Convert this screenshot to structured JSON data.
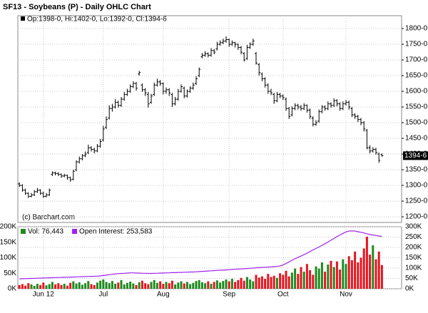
{
  "chart_data": {
    "type": "ohlc",
    "title": "SF13 - Soybeans (P) - Daily OHLC Chart",
    "legend": "Op:1398-0, Hi:1402-0, Lo:1392-0, Cl:1394-6",
    "last_label": "1394-6",
    "annotation": "(c) Barchart.com",
    "color": "#000000",
    "grid": true,
    "ylim": [
      1182,
      1841
    ],
    "yticks": [
      {
        "value": 1200,
        "label": "1200-0"
      },
      {
        "value": 1250,
        "label": "1250-0"
      },
      {
        "value": 1300,
        "label": "1300-0"
      },
      {
        "value": 1350,
        "label": "1350-0"
      },
      {
        "value": 1400,
        "label": "1400-0"
      },
      {
        "value": 1450,
        "label": "1450-0"
      },
      {
        "value": 1500,
        "label": "1500-0"
      },
      {
        "value": 1550,
        "label": "1550-0"
      },
      {
        "value": 1600,
        "label": "1600-0"
      },
      {
        "value": 1650,
        "label": "1650-0"
      },
      {
        "value": 1700,
        "label": "1700-0"
      },
      {
        "value": 1750,
        "label": "1750-0"
      },
      {
        "value": 1800,
        "label": "1800-0"
      }
    ],
    "categories": [
      null,
      null,
      null,
      null,
      null,
      null,
      null,
      null,
      "Jun 12",
      null,
      null,
      null,
      null,
      null,
      null,
      null,
      null,
      null,
      null,
      null,
      null,
      null,
      null,
      null,
      null,
      null,
      null,
      null,
      "Jul",
      null,
      null,
      null,
      null,
      null,
      null,
      null,
      null,
      null,
      null,
      null,
      null,
      null,
      null,
      null,
      null,
      null,
      null,
      null,
      "Aug",
      null,
      null,
      null,
      null,
      null,
      null,
      null,
      null,
      null,
      null,
      null,
      null,
      null,
      null,
      null,
      null,
      null,
      null,
      null,
      null,
      null,
      "Sep",
      null,
      null,
      null,
      null,
      null,
      null,
      null,
      null,
      null,
      null,
      null,
      null,
      null,
      null,
      null,
      null,
      null,
      "Oct",
      null,
      null,
      null,
      null,
      null,
      null,
      null,
      null,
      null,
      null,
      null,
      null,
      null,
      null,
      null,
      null,
      null,
      null,
      null,
      null,
      "Nov",
      null,
      null,
      null,
      null,
      null,
      null,
      null,
      null,
      null,
      null,
      null,
      null
    ],
    "bars": [
      [
        1305,
        1310,
        1295,
        1300
      ],
      [
        1300,
        1304,
        1280,
        1285
      ],
      [
        1285,
        1290,
        1270,
        1275
      ],
      [
        1275,
        1278,
        1260,
        1265
      ],
      [
        1265,
        1276,
        1262,
        1270
      ],
      [
        1270,
        1285,
        1266,
        1280
      ],
      [
        1280,
        1292,
        1276,
        1285
      ],
      [
        1285,
        1288,
        1270,
        1275
      ],
      [
        1275,
        1280,
        1260,
        1265
      ],
      [
        1265,
        1276,
        1262,
        1270
      ],
      [
        1270,
        1290,
        1266,
        1285
      ],
      [
        1335,
        1345,
        1330,
        1340
      ],
      [
        1340,
        1344,
        1332,
        1338
      ],
      [
        1338,
        1342,
        1330,
        1335
      ],
      [
        1335,
        1338,
        1324,
        1330
      ],
      [
        1330,
        1337,
        1326,
        1332
      ],
      [
        1332,
        1335,
        1318,
        1325
      ],
      [
        1325,
        1328,
        1312,
        1318
      ],
      [
        1320,
        1350,
        1316,
        1345
      ],
      [
        1350,
        1380,
        1345,
        1375
      ],
      [
        1375,
        1392,
        1370,
        1385
      ],
      [
        1385,
        1400,
        1380,
        1395
      ],
      [
        1395,
        1408,
        1390,
        1400
      ],
      [
        1405,
        1430,
        1400,
        1420
      ],
      [
        1420,
        1425,
        1408,
        1415
      ],
      [
        1415,
        1420,
        1402,
        1410
      ],
      [
        1410,
        1432,
        1406,
        1425
      ],
      [
        1425,
        1448,
        1420,
        1440
      ],
      [
        1445,
        1490,
        1440,
        1480
      ],
      [
        1485,
        1520,
        1480,
        1510
      ],
      [
        1515,
        1555,
        1510,
        1545
      ],
      [
        1545,
        1560,
        1535,
        1550
      ],
      [
        1550,
        1575,
        1545,
        1565
      ],
      [
        1565,
        1570,
        1548,
        1555
      ],
      [
        1555,
        1582,
        1550,
        1575
      ],
      [
        1575,
        1598,
        1570,
        1590
      ],
      [
        1590,
        1608,
        1585,
        1600
      ],
      [
        1600,
        1622,
        1595,
        1615
      ],
      [
        1615,
        1632,
        1610,
        1625
      ],
      [
        1625,
        1630,
        1602,
        1610
      ],
      [
        1655,
        1665,
        1650,
        1660
      ],
      [
        1620,
        1625,
        1598,
        1605
      ],
      [
        1605,
        1610,
        1585,
        1595
      ],
      [
        1590,
        1598,
        1548,
        1560
      ],
      [
        1565,
        1592,
        1560,
        1585
      ],
      [
        1590,
        1628,
        1585,
        1620
      ],
      [
        1620,
        1640,
        1615,
        1630
      ],
      [
        1630,
        1636,
        1618,
        1625
      ],
      [
        1625,
        1628,
        1590,
        1600
      ],
      [
        1600,
        1612,
        1592,
        1605
      ],
      [
        1605,
        1610,
        1585,
        1595
      ],
      [
        1590,
        1595,
        1550,
        1560
      ],
      [
        1560,
        1582,
        1555,
        1575
      ],
      [
        1575,
        1608,
        1570,
        1600
      ],
      [
        1600,
        1622,
        1596,
        1615
      ],
      [
        1610,
        1615,
        1578,
        1585
      ],
      [
        1585,
        1606,
        1580,
        1600
      ],
      [
        1600,
        1616,
        1595,
        1610
      ],
      [
        1610,
        1628,
        1605,
        1620
      ],
      [
        1625,
        1648,
        1620,
        1640
      ],
      [
        1650,
        1676,
        1645,
        1670
      ],
      [
        1710,
        1722,
        1705,
        1715
      ],
      [
        1715,
        1728,
        1710,
        1720
      ],
      [
        1720,
        1724,
        1708,
        1715
      ],
      [
        1715,
        1738,
        1710,
        1730
      ],
      [
        1730,
        1735,
        1718,
        1725
      ],
      [
        1735,
        1758,
        1730,
        1750
      ],
      [
        1750,
        1762,
        1745,
        1755
      ],
      [
        1755,
        1768,
        1750,
        1760
      ],
      [
        1760,
        1775,
        1755,
        1765
      ],
      [
        1765,
        1768,
        1742,
        1750
      ],
      [
        1750,
        1762,
        1745,
        1755
      ],
      [
        1755,
        1758,
        1740,
        1750
      ],
      [
        1750,
        1752,
        1732,
        1740
      ],
      [
        1740,
        1744,
        1718,
        1725
      ],
      [
        1720,
        1725,
        1695,
        1700
      ],
      [
        1705,
        1748,
        1700,
        1740
      ],
      [
        1740,
        1756,
        1735,
        1750
      ],
      [
        1750,
        1768,
        1745,
        1760
      ],
      [
        1720,
        1725,
        1685,
        1690
      ],
      [
        1685,
        1690,
        1650,
        1660
      ],
      [
        1655,
        1660,
        1632,
        1640
      ],
      [
        1640,
        1645,
        1612,
        1620
      ],
      [
        1620,
        1625,
        1592,
        1600
      ],
      [
        1600,
        1608,
        1588,
        1595
      ],
      [
        1590,
        1595,
        1560,
        1570
      ],
      [
        1570,
        1598,
        1565,
        1590
      ],
      [
        1590,
        1595,
        1578,
        1585
      ],
      [
        1585,
        1590,
        1572,
        1580
      ],
      [
        1575,
        1580,
        1538,
        1545
      ],
      [
        1545,
        1550,
        1512,
        1520
      ],
      [
        1525,
        1552,
        1520,
        1545
      ],
      [
        1545,
        1562,
        1540,
        1555
      ],
      [
        1555,
        1560,
        1542,
        1550
      ],
      [
        1550,
        1556,
        1538,
        1545
      ],
      [
        1545,
        1562,
        1540,
        1555
      ],
      [
        1555,
        1558,
        1532,
        1540
      ],
      [
        1540,
        1545,
        1512,
        1520
      ],
      [
        1515,
        1520,
        1488,
        1495
      ],
      [
        1495,
        1508,
        1490,
        1500
      ],
      [
        1505,
        1542,
        1500,
        1535
      ],
      [
        1535,
        1556,
        1530,
        1550
      ],
      [
        1550,
        1555,
        1538,
        1545
      ],
      [
        1545,
        1568,
        1540,
        1560
      ],
      [
        1560,
        1565,
        1548,
        1555
      ],
      [
        1555,
        1578,
        1550,
        1570
      ],
      [
        1570,
        1575,
        1552,
        1560
      ],
      [
        1560,
        1565,
        1538,
        1545
      ],
      [
        1545,
        1568,
        1540,
        1560
      ],
      [
        1560,
        1572,
        1555,
        1565
      ],
      [
        1565,
        1570,
        1542,
        1550
      ],
      [
        1545,
        1550,
        1518,
        1525
      ],
      [
        1525,
        1530,
        1512,
        1520
      ],
      [
        1520,
        1525,
        1502,
        1510
      ],
      [
        1510,
        1515,
        1492,
        1500
      ],
      [
        1500,
        1505,
        1472,
        1480
      ],
      [
        1475,
        1480,
        1415,
        1420
      ],
      [
        1420,
        1428,
        1402,
        1410
      ],
      [
        1410,
        1422,
        1405,
        1415
      ],
      [
        1415,
        1420,
        1398,
        1405
      ],
      [
        1400,
        1405,
        1372,
        1380
      ],
      [
        1398,
        1402,
        1392,
        1394.75
      ]
    ],
    "up_color": "#1f8a1f",
    "down_color": "#e8141e",
    "vol_ylim": [
      0,
      200000
    ],
    "vol_yticks": [
      {
        "value": 0,
        "label": "0K"
      },
      {
        "value": 50000,
        "label": "50K"
      },
      {
        "value": 100000,
        "label": "100K"
      },
      {
        "value": 150000,
        "label": "150K"
      },
      {
        "value": 200000,
        "label": "200K"
      }
    ],
    "y2lim": [
      0,
      300000
    ],
    "y2ticks": [
      {
        "value": 0,
        "label": "0K"
      },
      {
        "value": 50000,
        "label": "50K"
      },
      {
        "value": 100000,
        "label": "100K"
      },
      {
        "value": 150000,
        "label": "150K"
      },
      {
        "value": 200000,
        "label": "200K"
      },
      {
        "value": 250000,
        "label": "250K"
      },
      {
        "value": 300000,
        "label": "300K"
      }
    ],
    "series": [
      {
        "name": "Vol: 76,443",
        "color": "#1f8a1f",
        "values": [
          12000,
          15000,
          10000,
          18000,
          14000,
          9000,
          16000,
          12000,
          20000,
          11000,
          15000,
          22000,
          14000,
          18000,
          12000,
          16000,
          10000,
          19000,
          24000,
          17000,
          21000,
          13000,
          18000,
          25000,
          15000,
          12000,
          20000,
          26000,
          30000,
          22000,
          18000,
          25000,
          16000,
          20000,
          28000,
          14000,
          19000,
          23000,
          17000,
          12000,
          21000,
          26000,
          18000,
          15000,
          22000,
          28000,
          19000,
          24000,
          16000,
          22000,
          18000,
          26000,
          14000,
          20000,
          24000,
          17000,
          22000,
          15000,
          19000,
          25000,
          28000,
          21000,
          18000,
          24000,
          16000,
          22000,
          27000,
          20000,
          25000,
          30000,
          24000,
          32000,
          22000,
          28000,
          35000,
          26000,
          38000,
          30000,
          24000,
          45000,
          36000,
          40000,
          32000,
          48000,
          38000,
          42000,
          35000,
          50000,
          45000,
          58000,
          40000,
          52000,
          65000,
          48000,
          70000,
          55000,
          80000,
          60000,
          45000,
          72000,
          65000,
          85000,
          55000,
          78000,
          90000,
          70000,
          88000,
          62000,
          95000,
          80000,
          105000,
          92000,
          120000,
          85000,
          100000,
          130000,
          168000,
          110000,
          140000,
          95000,
          120000,
          76443
        ]
      },
      {
        "name": "Open Interest: 253,583",
        "color": "#a020f0",
        "axis": "y2",
        "values": [
          48000,
          48500,
          49000,
          49500,
          50000,
          50500,
          51000,
          51500,
          52000,
          52500,
          53000,
          53500,
          54000,
          54500,
          55000,
          55500,
          56000,
          56500,
          57000,
          57500,
          58000,
          58500,
          59000,
          59500,
          60000,
          60500,
          61000,
          62000,
          64000,
          66000,
          68000,
          70000,
          72000,
          73000,
          74000,
          75000,
          76000,
          77000,
          77000,
          76000,
          76000,
          75000,
          75000,
          74000,
          74000,
          75000,
          75000,
          76000,
          76000,
          77000,
          77000,
          78000,
          78000,
          79000,
          79000,
          80000,
          80000,
          81000,
          81000,
          82000,
          83000,
          84000,
          85000,
          86000,
          87000,
          88000,
          89000,
          90000,
          90000,
          91000,
          92000,
          93000,
          94000,
          95000,
          96000,
          97000,
          98000,
          99000,
          100000,
          101000,
          102000,
          103000,
          104000,
          105000,
          106000,
          107000,
          108000,
          110000,
          115000,
          122000,
          130000,
          138000,
          145000,
          152000,
          158000,
          165000,
          172000,
          180000,
          188000,
          195000,
          202000,
          210000,
          218000,
          226000,
          235000,
          243000,
          252000,
          260000,
          268000,
          275000,
          279000,
          280000,
          279000,
          276000,
          273000,
          270000,
          266000,
          262000,
          260000,
          258000,
          255000,
          253583
        ]
      }
    ]
  }
}
